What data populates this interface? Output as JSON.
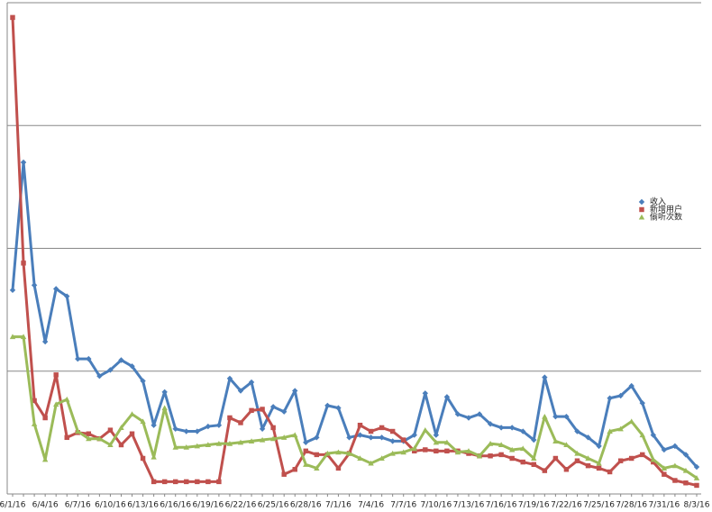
{
  "chart_data": {
    "type": "line",
    "categories": [
      "6/1/16",
      null,
      null,
      "6/4/16",
      null,
      null,
      "6/7/16",
      null,
      null,
      "6/10/16",
      null,
      null,
      "6/13/16",
      null,
      null,
      "6/16/16",
      null,
      null,
      "6/19/16",
      null,
      null,
      "6/22/16",
      null,
      null,
      "6/25/16",
      null,
      null,
      "6/28/16",
      null,
      null,
      "7/1/16",
      null,
      null,
      "7/4/16",
      null,
      null,
      "7/7/16",
      null,
      null,
      "7/10/16",
      null,
      null,
      "7/13/16",
      null,
      null,
      "7/16/16",
      null,
      null,
      "7/19/16",
      null,
      null,
      "7/22/16",
      null,
      null,
      "7/25/16",
      null,
      null,
      "7/28/16",
      null,
      null,
      "7/31/16",
      null,
      null,
      "8/3/16"
    ],
    "series": [
      {
        "name": "收入",
        "color": "#4a7ebb",
        "marker": "diamond",
        "values": [
          1.66,
          2.7,
          1.7,
          1.24,
          1.67,
          1.61,
          1.1,
          1.1,
          0.96,
          1.01,
          1.09,
          1.04,
          0.92,
          0.56,
          0.83,
          0.53,
          0.51,
          0.51,
          0.55,
          0.56,
          0.94,
          0.84,
          0.91,
          0.53,
          0.71,
          0.67,
          0.84,
          0.42,
          0.46,
          0.72,
          0.7,
          0.46,
          0.48,
          0.46,
          0.46,
          0.43,
          0.43,
          0.48,
          0.82,
          0.48,
          0.79,
          0.65,
          0.62,
          0.65,
          0.57,
          0.54,
          0.54,
          0.51,
          0.44,
          0.95,
          0.63,
          0.63,
          0.51,
          0.46,
          0.39,
          0.78,
          0.8,
          0.88,
          0.74,
          0.48,
          0.36,
          0.39,
          0.32,
          0.22
        ]
      },
      {
        "name": "新增用户",
        "color": "#c0504d",
        "marker": "square",
        "values": [
          3.88,
          1.88,
          0.76,
          0.62,
          0.97,
          0.46,
          0.5,
          0.49,
          0.45,
          0.52,
          0.4,
          0.49,
          0.29,
          0.1,
          0.1,
          0.1,
          0.1,
          0.1,
          0.1,
          0.1,
          0.62,
          0.58,
          0.68,
          0.69,
          0.54,
          0.16,
          0.2,
          0.35,
          0.32,
          0.32,
          0.21,
          0.33,
          0.56,
          0.51,
          0.54,
          0.51,
          0.44,
          0.35,
          0.36,
          0.35,
          0.35,
          0.35,
          0.33,
          0.31,
          0.31,
          0.32,
          0.29,
          0.26,
          0.24,
          0.19,
          0.29,
          0.2,
          0.27,
          0.23,
          0.21,
          0.18,
          0.27,
          0.29,
          0.32,
          0.26,
          0.16,
          0.11,
          0.09,
          0.07
        ]
      },
      {
        "name": "偷听次数",
        "color": "#9bbb59",
        "marker": "triangle",
        "values": [
          1.28,
          1.28,
          0.57,
          0.28,
          0.73,
          0.77,
          0.51,
          0.45,
          0.45,
          0.4,
          0.54,
          0.65,
          0.59,
          0.3,
          0.7,
          0.38,
          0.38,
          0.39,
          0.4,
          0.41,
          0.41,
          0.42,
          0.43,
          0.44,
          0.45,
          0.46,
          0.48,
          0.24,
          0.21,
          0.33,
          0.34,
          0.33,
          0.29,
          0.25,
          0.29,
          0.33,
          0.34,
          0.37,
          0.52,
          0.42,
          0.42,
          0.34,
          0.35,
          0.31,
          0.41,
          0.4,
          0.36,
          0.37,
          0.29,
          0.63,
          0.43,
          0.4,
          0.33,
          0.29,
          0.25,
          0.51,
          0.53,
          0.59,
          0.48,
          0.28,
          0.21,
          0.23,
          0.19,
          0.13
        ]
      }
    ],
    "ylim": [
      0,
      4
    ],
    "yticks": [
      1,
      2,
      3,
      4
    ],
    "grid": true,
    "legend": "right"
  }
}
